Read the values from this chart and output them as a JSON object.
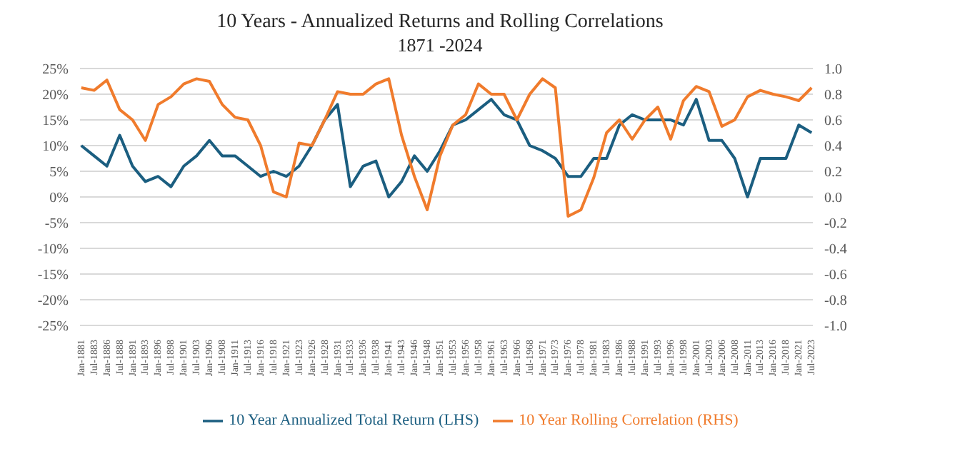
{
  "chart_data": {
    "type": "line",
    "title": "10 Years - Annualized Returns and Rolling Correlations",
    "subtitle": "1871 -2024",
    "categories": [
      "Jan-1881",
      "Jul-1883",
      "Jan-1886",
      "Jul-1888",
      "Jan-1891",
      "Jul-1893",
      "Jan-1896",
      "Jul-1898",
      "Jan-1901",
      "Jul-1903",
      "Jan-1906",
      "Jul-1908",
      "Jan-1911",
      "Jul-1913",
      "Jan-1916",
      "Jul-1918",
      "Jan-1921",
      "Jul-1923",
      "Jan-1926",
      "Jul-1928",
      "Jan-1931",
      "Jul-1933",
      "Jan-1936",
      "Jul-1938",
      "Jan-1941",
      "Jul-1943",
      "Jan-1946",
      "Jul-1948",
      "Jan-1951",
      "Jul-1953",
      "Jan-1956",
      "Jul-1958",
      "Jan-1961",
      "Jul-1963",
      "Jan-1966",
      "Jul-1968",
      "Jan-1971",
      "Jul-1973",
      "Jan-1976",
      "Jul-1978",
      "Jan-1981",
      "Jul-1983",
      "Jan-1986",
      "Jul-1988",
      "Jan-1991",
      "Jul-1993",
      "Jan-1996",
      "Jul-1998",
      "Jan-2001",
      "Jul-2003",
      "Jan-2006",
      "Jul-2008",
      "Jan-2011",
      "Jul-2013",
      "Jan-2016",
      "Jul-2018",
      "Jan-2021",
      "Jul-2023"
    ],
    "series": [
      {
        "name": "10 Year Annualized Total Return (LHS)",
        "color": "#1b5e80",
        "values": [
          10,
          8,
          6,
          12,
          6,
          3,
          4,
          2,
          6,
          8,
          11,
          8,
          8,
          6,
          4,
          5,
          4,
          6,
          10,
          15,
          18,
          2,
          6,
          7,
          0,
          3,
          8,
          5,
          9,
          14,
          15,
          17,
          19,
          16,
          15,
          10,
          9,
          7.5,
          4,
          4,
          7.5,
          7.5,
          14,
          16,
          15,
          15,
          15,
          14,
          19,
          11,
          11,
          7.5,
          0,
          7.5,
          7.5,
          7.5,
          14,
          12.5
        ]
      },
      {
        "name": "10 Year Rolling Correlation (RHS)",
        "color": "#f07b2c",
        "axis": "y2",
        "values": [
          0.85,
          0.83,
          0.91,
          0.68,
          0.6,
          0.44,
          0.72,
          0.78,
          0.88,
          0.92,
          0.9,
          0.72,
          0.62,
          0.6,
          0.4,
          0.04,
          0,
          0.42,
          0.4,
          0.6,
          0.82,
          0.8,
          0.8,
          0.88,
          0.92,
          0.48,
          0.16,
          -0.1,
          0.32,
          0.56,
          0.64,
          0.88,
          0.8,
          0.8,
          0.6,
          0.8,
          0.92,
          0.85,
          -0.15,
          -0.1,
          0.15,
          0.5,
          0.6,
          0.45,
          0.6,
          0.7,
          0.45,
          0.75,
          0.86,
          0.82,
          0.55,
          0.6,
          0.78,
          0.83,
          0.8,
          0.78,
          0.75,
          0.85
        ]
      }
    ],
    "ylim": [
      -25,
      25
    ],
    "yticks": [
      {
        "value": -25,
        "label": "-25%"
      },
      {
        "value": -20,
        "label": "-20%"
      },
      {
        "value": -15,
        "label": "-15%"
      },
      {
        "value": -10,
        "label": "-10%"
      },
      {
        "value": -5,
        "label": "-5%"
      },
      {
        "value": 0,
        "label": "0%"
      },
      {
        "value": 5,
        "label": "5%"
      },
      {
        "value": 10,
        "label": "10%"
      },
      {
        "value": 15,
        "label": "15%"
      },
      {
        "value": 20,
        "label": "20%"
      },
      {
        "value": 25,
        "label": "25%"
      }
    ],
    "y2lim": [
      -1,
      1
    ],
    "y2ticks": [
      {
        "value": -1,
        "label": "-1.0"
      },
      {
        "value": -0.8,
        "label": "-0.8"
      },
      {
        "value": -0.6,
        "label": "-0.6"
      },
      {
        "value": -0.4,
        "label": "-0.4"
      },
      {
        "value": -0.2,
        "label": "-0.2"
      },
      {
        "value": 0,
        "label": "0.0"
      },
      {
        "value": 0.2,
        "label": "0.2"
      },
      {
        "value": 0.4,
        "label": "0.4"
      },
      {
        "value": 0.6,
        "label": "0.6"
      },
      {
        "value": 0.8,
        "label": "0.8"
      },
      {
        "value": 1,
        "label": "1.0"
      }
    ],
    "grid": "y",
    "legend": "bottom",
    "marker": "none",
    "line_style": "solid"
  }
}
